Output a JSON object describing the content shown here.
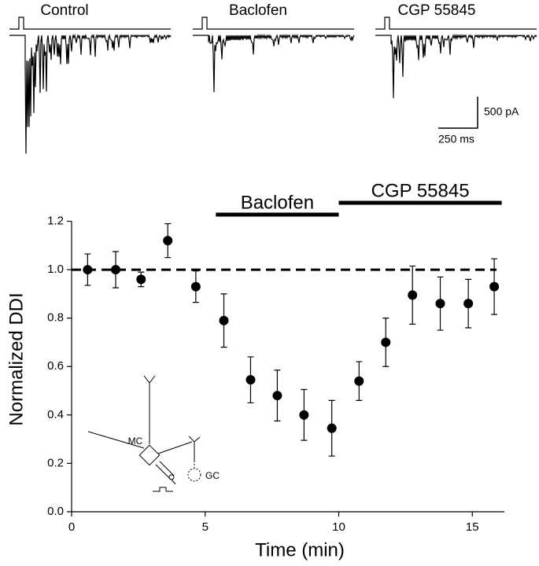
{
  "chart_data": {
    "type": "scatter",
    "x_label": "Time (min)",
    "y_label": "Normalized DDI",
    "x": [
      0.6,
      1.65,
      2.6,
      3.6,
      4.65,
      5.7,
      6.7,
      7.7,
      8.7,
      9.74,
      10.76,
      11.76,
      12.76,
      13.8,
      14.85,
      15.82
    ],
    "series": [
      {
        "color": "#000000",
        "values": [
          1.0,
          1.0,
          0.96,
          1.12,
          0.93,
          0.79,
          0.545,
          0.48,
          0.4,
          0.345,
          0.54,
          0.7,
          0.895,
          0.86,
          0.86,
          0.93
        ],
        "errors": [
          0.065,
          0.075,
          0.03,
          0.07,
          0.065,
          0.11,
          0.095,
          0.105,
          0.105,
          0.115,
          0.08,
          0.1,
          0.12,
          0.11,
          0.1,
          0.115
        ]
      }
    ],
    "xlim": [
      0,
      16.2
    ],
    "ylim": [
      0,
      1.26
    ],
    "xticks": [
      0,
      5,
      10,
      15
    ],
    "yticks": [
      {
        "value": 0,
        "label": "0.0"
      },
      0.2,
      0.4,
      0.6,
      0.8,
      {
        "value": 1,
        "label": "1.0"
      },
      1.2
    ],
    "reference_line": 1.0,
    "annotations": [
      {
        "text": "Baclofen",
        "x": [
          5.4,
          10
        ]
      },
      {
        "text": "CGP 55845",
        "x": [
          10,
          16.1
        ]
      }
    ]
  },
  "traces": {
    "titles": [
      "Control",
      "Baclofen",
      "CGP 55845"
    ],
    "scale_labels": [
      "500 pA",
      "250 ms"
    ]
  },
  "inset": {
    "labels": [
      "MC",
      "GC"
    ]
  }
}
